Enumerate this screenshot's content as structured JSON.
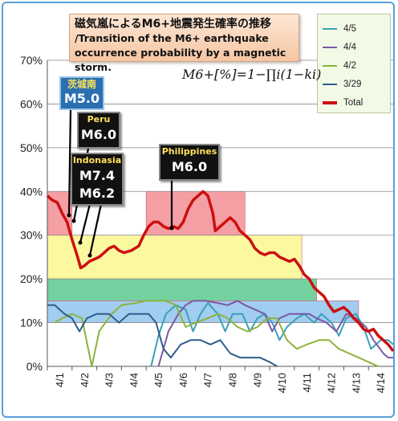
{
  "title_jp": "磁気嵐によるM6+地震発生確率の推移",
  "title_en_line1": "/Transition of the M6+ earthquake",
  "title_en_line2": "occurrence probability by a magnetic storm.",
  "formula": "M6+[%]=1−∏i(1−ki)",
  "callouts": [
    {
      "name": "callout-ibaraki",
      "place": "茨城南",
      "mag": "M5.0"
    },
    {
      "name": "callout-peru",
      "place": "Peru",
      "mag": "M6.0"
    },
    {
      "name": "callout-indonesia",
      "place": "Indonasia",
      "mag": "M7.4",
      "mag2": "M6.2"
    },
    {
      "name": "callout-philippines",
      "place": "Philippines",
      "mag": "M6.0"
    }
  ],
  "chart_data": {
    "type": "line",
    "ylim": [
      0,
      70
    ],
    "yticks": [
      "0%",
      "10%",
      "20%",
      "30%",
      "40%",
      "50%",
      "60%",
      "70%"
    ],
    "xlim": [
      0,
      14
    ],
    "categories": [
      "4/1",
      "4/2",
      "4/3",
      "4/4",
      "4/5",
      "4/6",
      "4/7",
      "4/8",
      "4/9",
      "4/10",
      "4/11",
      "4/12",
      "4/13",
      "4/14"
    ],
    "grid": true,
    "legend_position": "top-right",
    "series": [
      {
        "name": "4/5",
        "color": "#3aa0b8",
        "points": [
          [
            4.2,
            0
          ],
          [
            4.5,
            7
          ],
          [
            4.8,
            12
          ],
          [
            5.2,
            14
          ],
          [
            5.6,
            13
          ],
          [
            5.9,
            8
          ],
          [
            6.2,
            12
          ],
          [
            6.5,
            14.5
          ],
          [
            6.9,
            12
          ],
          [
            7.2,
            8
          ],
          [
            7.5,
            12
          ],
          [
            7.9,
            12
          ],
          [
            8.2,
            8
          ],
          [
            8.5,
            11
          ],
          [
            8.8,
            12
          ],
          [
            9.1,
            10
          ],
          [
            9.4,
            6
          ],
          [
            9.7,
            9
          ],
          [
            10.1,
            11
          ],
          [
            10.4,
            12
          ],
          [
            10.8,
            10
          ],
          [
            11.1,
            12
          ],
          [
            11.5,
            10
          ],
          [
            11.8,
            7
          ],
          [
            12.1,
            11
          ],
          [
            12.5,
            12
          ],
          [
            12.8,
            9
          ],
          [
            13.1,
            4
          ],
          [
            13.5,
            6
          ],
          [
            13.8,
            6
          ],
          [
            14,
            5
          ]
        ]
      },
      {
        "name": "4/4",
        "color": "#7b58a6",
        "points": [
          [
            4.5,
            0
          ],
          [
            4.9,
            8
          ],
          [
            5.3,
            12
          ],
          [
            5.6,
            14
          ],
          [
            5.9,
            15
          ],
          [
            6.4,
            15
          ],
          [
            6.9,
            14.5
          ],
          [
            7.3,
            14
          ],
          [
            7.7,
            15
          ],
          [
            8.0,
            14
          ],
          [
            8.4,
            13
          ],
          [
            8.8,
            12
          ],
          [
            9.1,
            8
          ],
          [
            9.4,
            11
          ],
          [
            9.8,
            12
          ],
          [
            10.2,
            12
          ],
          [
            10.6,
            12
          ],
          [
            10.9,
            11
          ],
          [
            11.3,
            10
          ],
          [
            11.7,
            8
          ],
          [
            12.1,
            12
          ],
          [
            12.5,
            11
          ],
          [
            12.9,
            9
          ],
          [
            13.2,
            6
          ],
          [
            13.6,
            3
          ],
          [
            13.8,
            2
          ],
          [
            14,
            2
          ]
        ]
      },
      {
        "name": "4/2",
        "color": "#8cb43c",
        "points": [
          [
            0.3,
            10
          ],
          [
            0.6,
            11
          ],
          [
            1.0,
            12
          ],
          [
            1.4,
            11
          ],
          [
            1.8,
            0
          ],
          [
            2.1,
            8
          ],
          [
            2.6,
            12
          ],
          [
            3.0,
            14
          ],
          [
            3.6,
            14.5
          ],
          [
            4.0,
            15
          ],
          [
            4.4,
            15
          ],
          [
            4.8,
            15
          ],
          [
            5.2,
            14
          ],
          [
            5.6,
            9
          ],
          [
            6.0,
            10
          ],
          [
            6.5,
            11
          ],
          [
            6.9,
            12
          ],
          [
            7.3,
            11
          ],
          [
            7.7,
            9
          ],
          [
            8.1,
            8
          ],
          [
            8.5,
            9
          ],
          [
            8.9,
            11
          ],
          [
            9.3,
            11
          ],
          [
            9.7,
            6
          ],
          [
            10.1,
            4
          ],
          [
            10.5,
            5
          ],
          [
            11.0,
            6
          ],
          [
            11.4,
            6
          ],
          [
            11.8,
            4
          ],
          [
            12.2,
            3
          ],
          [
            12.6,
            2
          ],
          [
            13.0,
            1
          ],
          [
            13.4,
            0
          ]
        ]
      },
      {
        "name": "3/29",
        "color": "#2f5d8c",
        "points": [
          [
            0,
            14
          ],
          [
            0.3,
            14
          ],
          [
            0.7,
            12
          ],
          [
            1.0,
            11
          ],
          [
            1.3,
            8
          ],
          [
            1.6,
            11
          ],
          [
            2.0,
            12
          ],
          [
            2.5,
            12
          ],
          [
            2.9,
            10
          ],
          [
            3.3,
            12
          ],
          [
            3.7,
            12
          ],
          [
            4.1,
            12
          ],
          [
            4.4,
            10
          ],
          [
            4.7,
            4
          ],
          [
            5.0,
            2
          ],
          [
            5.4,
            5
          ],
          [
            5.8,
            6
          ],
          [
            6.2,
            6
          ],
          [
            6.6,
            5
          ],
          [
            7.0,
            6
          ],
          [
            7.4,
            3
          ],
          [
            7.8,
            2
          ],
          [
            8.2,
            2
          ],
          [
            8.6,
            2
          ],
          [
            9.0,
            1
          ],
          [
            9.3,
            0
          ]
        ]
      },
      {
        "name": "Total",
        "color": "#cc1010",
        "points": [
          [
            0,
            39
          ],
          [
            0.2,
            38
          ],
          [
            0.4,
            37.5
          ],
          [
            0.6,
            35
          ],
          [
            0.8,
            33
          ],
          [
            1.0,
            29
          ],
          [
            1.2,
            25.5
          ],
          [
            1.35,
            22.5
          ],
          [
            1.5,
            23
          ],
          [
            1.7,
            24
          ],
          [
            1.9,
            24.5
          ],
          [
            2.1,
            25
          ],
          [
            2.3,
            26
          ],
          [
            2.5,
            27
          ],
          [
            2.7,
            27.5
          ],
          [
            2.9,
            26.5
          ],
          [
            3.1,
            26
          ],
          [
            3.4,
            26.5
          ],
          [
            3.7,
            27.5
          ],
          [
            3.9,
            30
          ],
          [
            4.1,
            32
          ],
          [
            4.3,
            33
          ],
          [
            4.5,
            33
          ],
          [
            4.7,
            32
          ],
          [
            4.9,
            31.5
          ],
          [
            5.1,
            32
          ],
          [
            5.3,
            31.5
          ],
          [
            5.5,
            33
          ],
          [
            5.7,
            36
          ],
          [
            5.9,
            38
          ],
          [
            6.1,
            39
          ],
          [
            6.3,
            40
          ],
          [
            6.5,
            39
          ],
          [
            6.7,
            35
          ],
          [
            6.8,
            31
          ],
          [
            7.0,
            32
          ],
          [
            7.2,
            33
          ],
          [
            7.4,
            34
          ],
          [
            7.6,
            33
          ],
          [
            7.8,
            31
          ],
          [
            8.0,
            30
          ],
          [
            8.2,
            29
          ],
          [
            8.4,
            27
          ],
          [
            8.6,
            26
          ],
          [
            8.8,
            25.5
          ],
          [
            9.0,
            26
          ],
          [
            9.2,
            26
          ],
          [
            9.4,
            25
          ],
          [
            9.6,
            24.5
          ],
          [
            9.8,
            24
          ],
          [
            10.0,
            24.5
          ],
          [
            10.2,
            23
          ],
          [
            10.4,
            21
          ],
          [
            10.6,
            20
          ],
          [
            10.8,
            18
          ],
          [
            11.0,
            17
          ],
          [
            11.2,
            16
          ],
          [
            11.4,
            14
          ],
          [
            11.6,
            12.5
          ],
          [
            11.8,
            13
          ],
          [
            12.0,
            13.5
          ],
          [
            12.2,
            12.5
          ],
          [
            12.4,
            11
          ],
          [
            12.6,
            10
          ],
          [
            12.8,
            8.5
          ],
          [
            13.0,
            8
          ],
          [
            13.2,
            8.5
          ],
          [
            13.4,
            7
          ],
          [
            13.6,
            6
          ],
          [
            13.8,
            5
          ],
          [
            14,
            3.5
          ]
        ]
      }
    ],
    "bands": [
      {
        "name": "red",
        "color": "#f49aa0",
        "segments": [
          [
            0,
            30,
            40
          ],
          [
            1.0,
            30,
            30
          ],
          [
            4.0,
            30,
            40
          ],
          [
            8.0,
            20,
            30
          ]
        ]
      },
      {
        "name": "yellow",
        "color": "#fbf89a",
        "segments": [
          [
            0,
            20,
            30
          ],
          [
            10.3,
            20,
            30
          ]
        ]
      },
      {
        "name": "green",
        "color": "#6ccf9a",
        "segments": [
          [
            0,
            15,
            20
          ],
          [
            10.9,
            15,
            20
          ]
        ]
      },
      {
        "name": "blue",
        "color": "#9ccbf0",
        "segments": [
          [
            0,
            10,
            15
          ],
          [
            12.6,
            10,
            15
          ]
        ]
      }
    ]
  }
}
